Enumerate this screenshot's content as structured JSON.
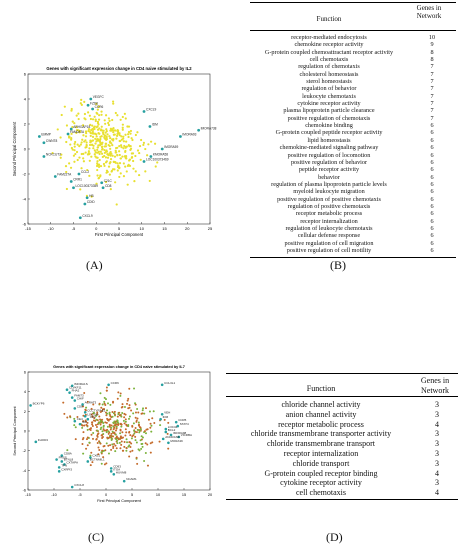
{
  "panels": {
    "A": {
      "label": "(A)",
      "chart_data": {
        "type": "scatter",
        "title": "Genes with significant expression change in CD4 naive stimulated by IL2",
        "xlabel": "First Principal Component",
        "ylabel": "Second Principal Component",
        "xlim": [
          -15,
          25
        ],
        "ylim": [
          -6,
          6
        ],
        "xticks": [
          "-15",
          "-10",
          "-5",
          "0",
          "5",
          "10",
          "15",
          "20",
          "25"
        ],
        "yticks": [
          "6",
          "4",
          "2",
          "0",
          "-2",
          "-4",
          "-6"
        ],
        "grid": false,
        "point_color": "#e8e030",
        "highlight_color": "#26a0a0",
        "annotations": [
          {
            "text": "VEGFC",
            "x": -1.2,
            "y": 4.0
          },
          {
            "text": "FZD6",
            "x": -1.8,
            "y": 3.5
          },
          {
            "text": "CCR6",
            "x": -0.8,
            "y": 3.2
          },
          {
            "text": "CXCL9",
            "x": 10.5,
            "y": 3.0
          },
          {
            "text": "ARHGAP18",
            "x": -5.5,
            "y": 1.6
          },
          {
            "text": "FAM0ATA",
            "x": -6.2,
            "y": 1.2
          },
          {
            "text": "EMMP",
            "x": -12.5,
            "y": 1.0
          },
          {
            "text": "CWNT8",
            "x": -11.5,
            "y": 0.5
          },
          {
            "text": "IDM",
            "x": 11.8,
            "y": 1.8
          },
          {
            "text": "IMORA738",
            "x": 22.5,
            "y": 1.5
          },
          {
            "text": "IMORA93",
            "x": 18.5,
            "y": 1.0
          },
          {
            "text": "NCKCUT2",
            "x": -11.5,
            "y": -0.6
          },
          {
            "text": "IMORA59",
            "x": 14.5,
            "y": 0.0
          },
          {
            "text": "KMORA58",
            "x": 12.0,
            "y": -0.6
          },
          {
            "text": "LOC100373469",
            "x": 10.5,
            "y": -1.0
          },
          {
            "text": "FAM227A",
            "x": -9.0,
            "y": -2.2
          },
          {
            "text": "CCL2",
            "x": -3.8,
            "y": -2.0
          },
          {
            "text": "CRR1",
            "x": -5.5,
            "y": -2.6
          },
          {
            "text": "LOC100373359",
            "x": -5.0,
            "y": -3.1
          },
          {
            "text": "C21C",
            "x": 1.2,
            "y": -2.7
          },
          {
            "text": "CD8",
            "x": 1.5,
            "y": -3.1
          },
          {
            "text": "HB",
            "x": -2.0,
            "y": -3.9
          },
          {
            "text": "CDID",
            "x": -2.5,
            "y": -4.4
          },
          {
            "text": "CXCL9",
            "x": -3.5,
            "y": -5.5
          }
        ]
      }
    },
    "B": {
      "label": "(B)",
      "headers": [
        "Function",
        "Genes in Network"
      ],
      "rows": [
        [
          "receptor-mediated endocytosis",
          "10"
        ],
        [
          "chemokine receptor activity",
          "9"
        ],
        [
          "G-protein coupled chemoattractant receptor activity",
          "8"
        ],
        [
          "cell chemotaxis",
          "8"
        ],
        [
          "regulation of chemotaxis",
          "7"
        ],
        [
          "cholesterol homeostasis",
          "7"
        ],
        [
          "sterol homeostasis",
          "7"
        ],
        [
          "regulation of behavior",
          "7"
        ],
        [
          "leukocyte chemotaxis",
          "7"
        ],
        [
          "cytokine receptor activity",
          "7"
        ],
        [
          "plasma lipoprotein particle clearance",
          "7"
        ],
        [
          "positive regulation of chemotaxis",
          "7"
        ],
        [
          "chemokine binding",
          "6"
        ],
        [
          "G-protein coupled peptide receptor activity",
          "6"
        ],
        [
          "lipid homeostasis",
          "6"
        ],
        [
          "chemokine-mediated signaling pathway",
          "6"
        ],
        [
          "positive regulation of locomotion",
          "6"
        ],
        [
          "positive regulation of behavior",
          "6"
        ],
        [
          "peptide receptor activity",
          "6"
        ],
        [
          "behavior",
          "6"
        ],
        [
          "regulation of plasma lipoprotein particle levels",
          "6"
        ],
        [
          "myeloid leukocyte migration",
          "6"
        ],
        [
          "positive regulation of positive chemotaxis",
          "6"
        ],
        [
          "regulation of positive chemotaxis",
          "6"
        ],
        [
          "receptor metabolic process",
          "6"
        ],
        [
          "receptor internalization",
          "6"
        ],
        [
          "regulation of leukocyte chemotaxis",
          "6"
        ],
        [
          "cellular defense response",
          "6"
        ],
        [
          "positive regulation of cell migration",
          "6"
        ],
        [
          "positive regulation of cell motility",
          "6"
        ]
      ]
    },
    "C": {
      "label": "(C)",
      "chart_data": {
        "type": "scatter",
        "title": "Genes with significant expression change in CD4 naive stimulated by IL7",
        "xlabel": "First Principal Component",
        "ylabel": "Second Principal Component",
        "xlim": [
          -15,
          20
        ],
        "ylim": [
          -6,
          6
        ],
        "xticks": [
          "-15",
          "-10",
          "-5",
          "0",
          "5",
          "10",
          "15",
          "20"
        ],
        "yticks": [
          "6",
          "4",
          "2",
          "0",
          "-2",
          "-4",
          "-6"
        ],
        "grid": false,
        "point_color": "#c46a2a",
        "point_color_alt": "#7bb23a",
        "highlight_color": "#26a0a0",
        "annotations": [
          {
            "text": "CCR6",
            "x": 0.5,
            "y": 4.7
          },
          {
            "text": "CCL3L1",
            "x": 10.8,
            "y": 4.7
          },
          {
            "text": "IMORA1S",
            "x": -6.5,
            "y": 4.6
          },
          {
            "text": "CLVKF11",
            "x": -7.5,
            "y": 4.2
          },
          {
            "text": "FHA2",
            "x": -7.0,
            "y": 3.9
          },
          {
            "text": "FAM73",
            "x": -6.5,
            "y": 3.4
          },
          {
            "text": "CHIF",
            "x": -6.0,
            "y": 3.1
          },
          {
            "text": "ACRAT3",
            "x": -4.5,
            "y": 2.7
          },
          {
            "text": "BCKYP6",
            "x": -14.5,
            "y": 2.6
          },
          {
            "text": "CD8",
            "x": -6.0,
            "y": 2.3
          },
          {
            "text": "CCCTYRAE1",
            "x": -4.0,
            "y": 1.9
          },
          {
            "text": "LOC100",
            "x": -4.0,
            "y": 1.5
          },
          {
            "text": "CD1",
            "x": -3.5,
            "y": 1.2
          },
          {
            "text": "CE4",
            "x": -6.0,
            "y": 1.0
          },
          {
            "text": "IDU",
            "x": -5.0,
            "y": 0.7
          },
          {
            "text": "VEH",
            "x": 10.8,
            "y": 1.7
          },
          {
            "text": "IDM",
            "x": 10.5,
            "y": 1.2
          },
          {
            "text": "CCR5",
            "x": 13.5,
            "y": 0.9
          },
          {
            "text": "STAT4",
            "x": 13.8,
            "y": 0.5
          },
          {
            "text": "LOC34",
            "x": 11.5,
            "y": 0.2
          },
          {
            "text": "BCL2",
            "x": 11.5,
            "y": -0.1
          },
          {
            "text": "IMORA98",
            "x": 12.5,
            "y": -0.4
          },
          {
            "text": "VICRBA",
            "x": 14.0,
            "y": -0.6
          },
          {
            "text": "ANCRAN6",
            "x": 11.0,
            "y": -0.8
          },
          {
            "text": "MORA39",
            "x": 12.0,
            "y": -1.2
          },
          {
            "text": "FHOD3",
            "x": -13.5,
            "y": -1.1
          },
          {
            "text": "CD8A",
            "x": -8.5,
            "y": -2.5
          },
          {
            "text": "PRSS",
            "x": -9.5,
            "y": -2.9
          },
          {
            "text": "BTNL8",
            "x": -8.5,
            "y": -3.1
          },
          {
            "text": "CXTAPA",
            "x": -8.0,
            "y": -3.4
          },
          {
            "text": "TFN",
            "x": -9.0,
            "y": -3.7
          },
          {
            "text": "CXRPI3",
            "x": -9.0,
            "y": -4.1
          },
          {
            "text": "CXE1",
            "x": -3.0,
            "y": -2.7
          },
          {
            "text": "BCTNMIL1",
            "x": -3.5,
            "y": -3.1
          },
          {
            "text": "CD93",
            "x": 1.0,
            "y": -3.8
          },
          {
            "text": "ITGA",
            "x": 1.0,
            "y": -4.1
          },
          {
            "text": "HUVM8",
            "x": 1.5,
            "y": -4.4
          },
          {
            "text": "NCAM1",
            "x": 3.5,
            "y": -5.1
          },
          {
            "text": "CXCL8",
            "x": -6.5,
            "y": -5.7
          }
        ]
      }
    },
    "D": {
      "label": "(D)",
      "headers": [
        "Function",
        "Genes in Network"
      ],
      "rows": [
        [
          "chloride channel activity",
          "3"
        ],
        [
          "anion channel activity",
          "3"
        ],
        [
          "receptor metabolic process",
          "4"
        ],
        [
          "chloride transmembrane transporter activity",
          "3"
        ],
        [
          "chloride transmembrane transport",
          "3"
        ],
        [
          "receptor internalization",
          "3"
        ],
        [
          "chloride transport",
          "3"
        ],
        [
          "G-protein coupled receptor binding",
          "4"
        ],
        [
          "cytokine receptor activity",
          "3"
        ],
        [
          "cell chemotaxis",
          "4"
        ]
      ]
    }
  }
}
